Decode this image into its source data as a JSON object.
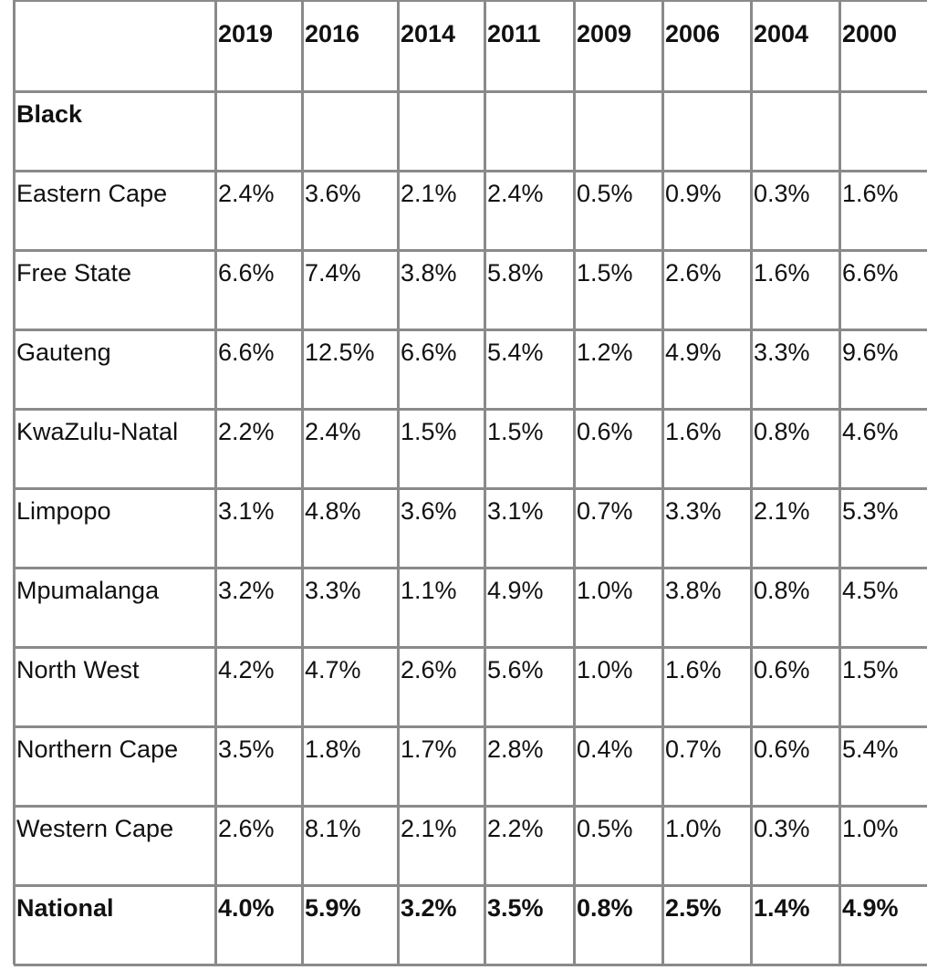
{
  "table": {
    "columns": [
      "2019",
      "2016",
      "2014",
      "2011",
      "2009",
      "2006",
      "2004",
      "2000"
    ],
    "rows": [
      {
        "label": "Black"
      },
      {
        "label": "Eastern Cape",
        "values": [
          "2.4%",
          "3.6%",
          "2.1%",
          "2.4%",
          "0.5%",
          "0.9%",
          "0.3%",
          "1.6%"
        ]
      },
      {
        "label": "Free State",
        "values": [
          "6.6%",
          "7.4%",
          "3.8%",
          "5.8%",
          "1.5%",
          "2.6%",
          "1.6%",
          "6.6%"
        ]
      },
      {
        "label": "Gauteng",
        "values": [
          "6.6%",
          "12.5%",
          "6.6%",
          "5.4%",
          "1.2%",
          "4.9%",
          "3.3%",
          "9.6%"
        ]
      },
      {
        "label": "KwaZulu-Natal",
        "values": [
          "2.2%",
          "2.4%",
          "1.5%",
          "1.5%",
          "0.6%",
          "1.6%",
          "0.8%",
          "4.6%"
        ]
      },
      {
        "label": "Limpopo",
        "values": [
          "3.1%",
          "4.8%",
          "3.6%",
          "3.1%",
          "0.7%",
          "3.3%",
          "2.1%",
          "5.3%"
        ]
      },
      {
        "label": "Mpumalanga",
        "values": [
          "3.2%",
          "3.3%",
          "1.1%",
          "4.9%",
          "1.0%",
          "3.8%",
          "0.8%",
          "4.5%"
        ]
      },
      {
        "label": "North West",
        "values": [
          "4.2%",
          "4.7%",
          "2.6%",
          "5.6%",
          "1.0%",
          "1.6%",
          "0.6%",
          "1.5%"
        ]
      },
      {
        "label": "Northern Cape",
        "values": [
          "3.5%",
          "1.8%",
          "1.7%",
          "2.8%",
          "0.4%",
          "0.7%",
          "0.6%",
          "5.4%"
        ]
      },
      {
        "label": "Western Cape",
        "values": [
          "2.6%",
          "8.1%",
          "2.1%",
          "2.2%",
          "0.5%",
          "1.0%",
          "0.3%",
          "1.0%"
        ]
      },
      {
        "label": "National",
        "values": [
          "4.0%",
          "5.9%",
          "3.2%",
          "3.5%",
          "0.8%",
          "2.5%",
          "1.4%",
          "4.9%"
        ]
      }
    ]
  }
}
